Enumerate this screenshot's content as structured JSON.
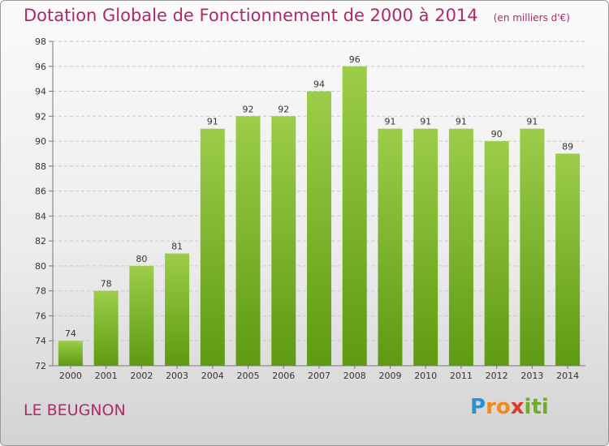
{
  "chart_data": {
    "type": "bar",
    "title": "Dotation Globale de Fonctionnement de 2000 à 2014",
    "unit": "(en milliers d'€)",
    "categories": [
      "2000",
      "2001",
      "2002",
      "2003",
      "2004",
      "2005",
      "2006",
      "2007",
      "2008",
      "2009",
      "2010",
      "2011",
      "2012",
      "2013",
      "2014"
    ],
    "values": [
      74,
      78,
      80,
      81,
      91,
      92,
      92,
      94,
      96,
      91,
      91,
      91,
      90,
      91,
      89
    ],
    "ylim": [
      72,
      98
    ],
    "yticks": [
      72,
      74,
      76,
      78,
      80,
      82,
      84,
      86,
      88,
      90,
      92,
      94,
      96,
      98
    ],
    "grid": true,
    "bar_color_top": "#9ccd4a",
    "bar_color_bottom": "#5e9a12"
  },
  "footer": {
    "commune": "LE BEUGNON",
    "brand": "Proxiti"
  },
  "colors": {
    "title": "#b0286b"
  }
}
